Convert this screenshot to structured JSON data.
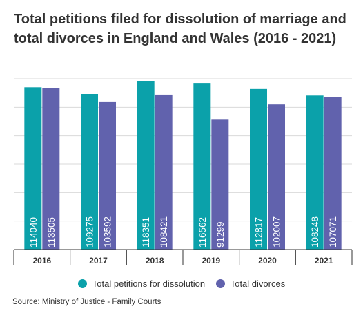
{
  "title": "Total petitions filed for dissolution of marriage and total divorces in England and Wales (2016 - 2021)",
  "source": "Source: Ministry of Justice - Family Courts",
  "colors": {
    "petitions": "#0ba1aa",
    "divorces": "#6162ad",
    "grid": "#d9d9d9",
    "axis": "#333333"
  },
  "chart_data": {
    "type": "bar",
    "title": "Total petitions filed for dissolution of marriage and total divorces in England and Wales (2016 - 2021)",
    "categories": [
      "2016",
      "2017",
      "2018",
      "2019",
      "2020",
      "2021"
    ],
    "series": [
      {
        "name": "Total petitions for dissolution",
        "values": [
          114040,
          109275,
          118351,
          116562,
          112817,
          108248
        ]
      },
      {
        "name": "Total divorces",
        "values": [
          113505,
          103592,
          108421,
          91299,
          102007,
          107071
        ]
      }
    ],
    "ylim": [
      0,
      120000
    ],
    "y_gridlines": [
      0,
      20000,
      40000,
      60000,
      80000,
      100000,
      120000
    ],
    "y_tick_labels_shown": false,
    "grid": true,
    "data_labels": "inside-bottom-vertical",
    "legend": "bottom-center"
  }
}
